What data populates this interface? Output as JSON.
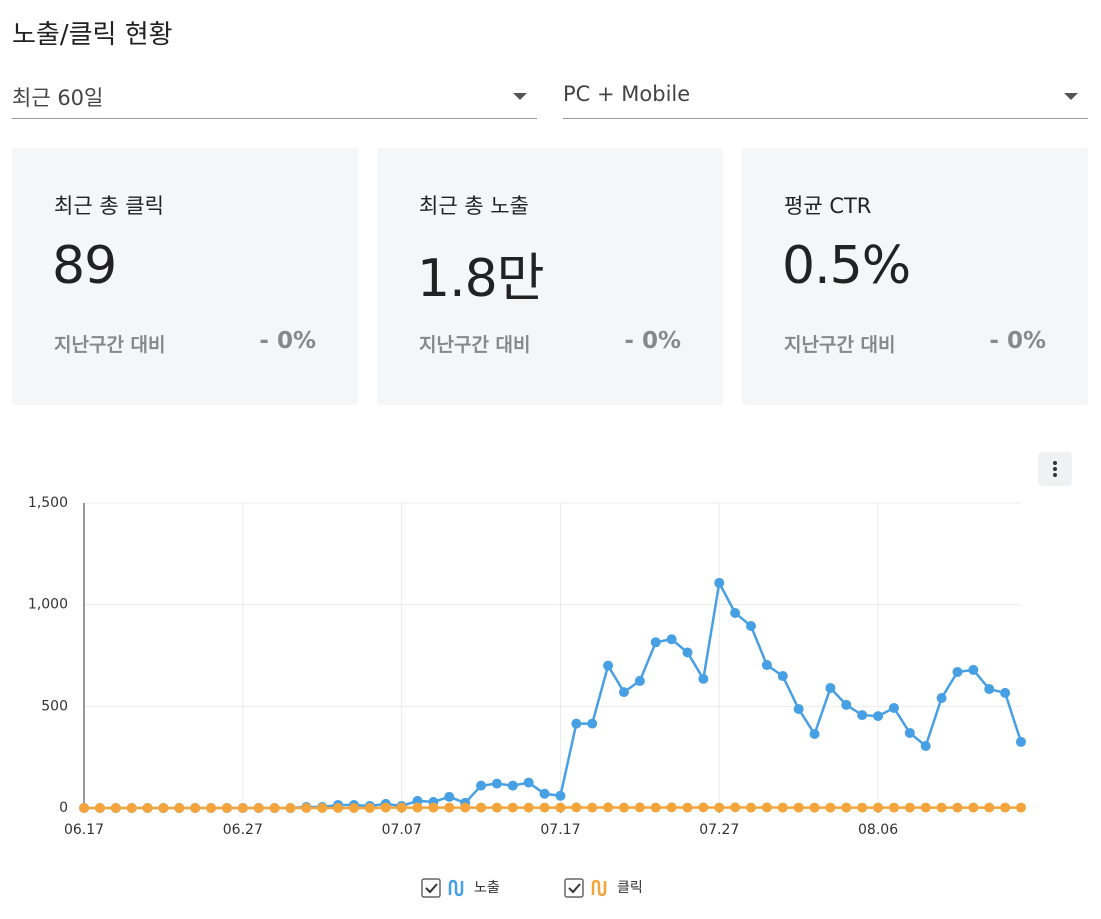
{
  "header": {
    "title": "노출/클릭 현황"
  },
  "filters": [
    {
      "label": "최근 60일"
    },
    {
      "label": "PC + Mobile"
    }
  ],
  "cards": [
    {
      "title": "최근 총 클릭",
      "value": "89",
      "compare_label": "지난구간 대비",
      "change": "- 0%"
    },
    {
      "title": "최근 총 노출",
      "value": "1.8만",
      "compare_label": "지난구간 대비",
      "change": "- 0%"
    },
    {
      "title": "평균 CTR",
      "value": "0.5%",
      "compare_label": "지난구간 대비",
      "change": "- 0%"
    }
  ],
  "chart_data": {
    "type": "line",
    "categories": [
      "06.17",
      null,
      null,
      null,
      null,
      null,
      null,
      null,
      null,
      null,
      "06.27",
      null,
      null,
      null,
      null,
      null,
      null,
      null,
      null,
      null,
      "07.07",
      null,
      null,
      null,
      null,
      null,
      null,
      null,
      null,
      null,
      "07.17",
      null,
      null,
      null,
      null,
      null,
      null,
      null,
      null,
      null,
      "07.27",
      null,
      null,
      null,
      null,
      null,
      null,
      null,
      null,
      null,
      "08.06",
      null,
      null,
      null,
      null,
      null,
      null,
      null,
      null,
      null
    ],
    "series": [
      {
        "name": "노출",
        "color": "#47a0e4",
        "values": [
          0,
          0,
          0,
          0,
          0,
          0,
          0,
          0,
          0,
          0,
          0,
          0,
          0,
          0,
          5,
          5,
          15,
          15,
          10,
          20,
          10,
          35,
          30,
          55,
          25,
          110,
          120,
          110,
          125,
          70,
          60,
          415,
          415,
          700,
          570,
          625,
          815,
          830,
          765,
          635,
          1107,
          959,
          895,
          703,
          649,
          487,
          364,
          590,
          507,
          457,
          452,
          492,
          369,
          305,
          541,
          669,
          679,
          585,
          566,
          325
        ]
      },
      {
        "name": "클릭",
        "color": "#f3a53c",
        "values": [
          0,
          0,
          0,
          0,
          0,
          0,
          0,
          0,
          0,
          0,
          0,
          0,
          0,
          0,
          0,
          0,
          0,
          0,
          0,
          2,
          2,
          2,
          2,
          2,
          2,
          2,
          2,
          2,
          2,
          2,
          2,
          3,
          2,
          3,
          2,
          3,
          2,
          3,
          2,
          3,
          2,
          3,
          2,
          3,
          2,
          2,
          2,
          2,
          2,
          2,
          2,
          2,
          2,
          2,
          2,
          2,
          2,
          2,
          2,
          2
        ]
      }
    ],
    "ylim": [
      0,
      1500
    ],
    "yticks": [
      0,
      500,
      {
        "value": 1000,
        "label": "1,000"
      },
      {
        "value": 1500,
        "label": "1,500"
      }
    ],
    "grid": true
  }
}
